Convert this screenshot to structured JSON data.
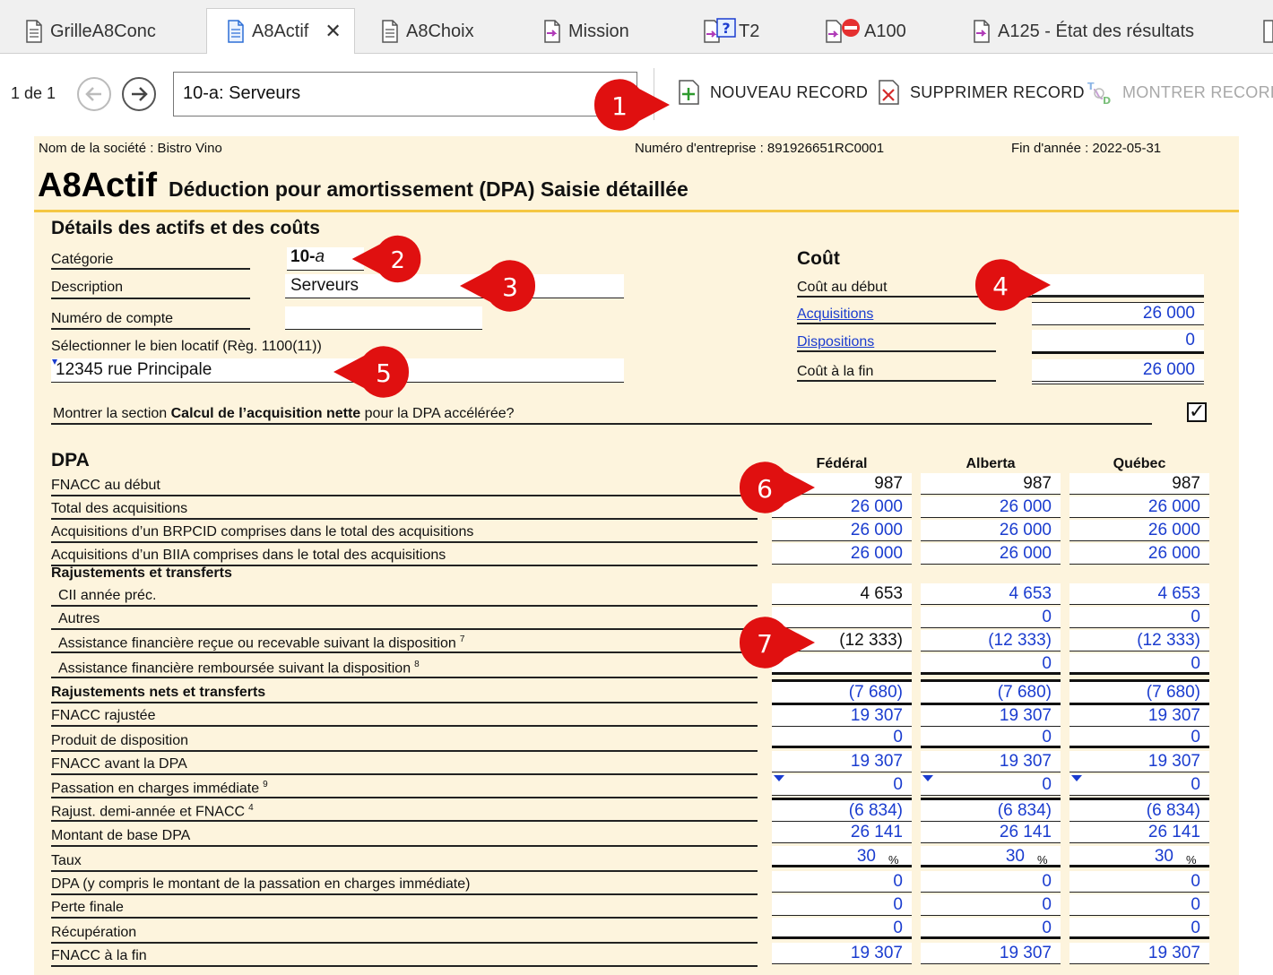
{
  "tabs": [
    {
      "label": "GrilleA8Conc",
      "icon": "document-icon"
    },
    {
      "label": "A8Actif",
      "icon": "document-icon",
      "active": true
    },
    {
      "label": "A8Choix",
      "icon": "document-icon"
    },
    {
      "label": "Mission",
      "icon": "document-arrow-icon"
    },
    {
      "label": "T2",
      "icon": "document-question-icon"
    },
    {
      "label": "A100",
      "icon": "document-error-icon"
    },
    {
      "label": "A125 - État des résultats",
      "icon": "document-arrow-icon"
    }
  ],
  "toolbar": {
    "record_count": "1 de 1",
    "record_value": "10-a: Serveurs",
    "new_record": "NOUVEAU RECORD",
    "delete_record": "SUPPRIMER RECORD",
    "show_record": "MONTRER RECORD"
  },
  "header": {
    "company": "Nom de la société : Bistro Vino",
    "business_number": "Numéro d'entreprise : 891926651RC0001",
    "year_end": "Fin d'année : 2022-05-31",
    "form_code": "A8Actif",
    "form_title": "Déduction pour amortissement (DPA) Saisie détaillée"
  },
  "details": {
    "section_title": "Détails des actifs et des coûts",
    "category_label": "Catégorie",
    "category_value_main": "10-",
    "category_value_suffix": "a",
    "description_label": "Description",
    "description_value": "Serveurs",
    "account_label": "Numéro de compte",
    "account_value": "",
    "rental_label": "Sélectionner le bien locatif (Règ. 1100(11))",
    "rental_value": "12345 rue Principale",
    "net_acq_prefix": "Montrer la section ",
    "net_acq_bold": "Calcul de l’acquisition nette",
    "net_acq_suffix": " pour la DPA accélérée?",
    "net_acq_checked": "✓"
  },
  "cost": {
    "title": "Coût",
    "opening_label": "Coût au début",
    "opening_value": "",
    "acquisitions_label": "Acquisitions",
    "acquisitions_value": "26 000",
    "dispositions_label": "Dispositions",
    "dispositions_value": "0",
    "closing_label": "Coût à la fin",
    "closing_value": "26 000"
  },
  "dpa": {
    "title": "DPA",
    "columns": [
      "Fédéral",
      "Alberta",
      "Québec"
    ],
    "rows": {
      "fnacc_debut": {
        "label": "FNACC au début",
        "values": [
          "987",
          "987",
          "987"
        ]
      },
      "total_acq": {
        "label": "Total des acquisitions",
        "values": [
          "26 000",
          "26 000",
          "26 000"
        ]
      },
      "brpcid": {
        "label": "Acquisitions d’un BRPCID comprises dans le total des acquisitions",
        "values": [
          "26 000",
          "26 000",
          "26 000"
        ]
      },
      "biia": {
        "label": "Acquisitions d’un BIIA comprises dans le total des acquisitions",
        "values": [
          "26 000",
          "26 000",
          "26 000"
        ]
      },
      "raj_title": {
        "label": "Rajustements et transferts"
      },
      "cii": {
        "label": "CII année préc.",
        "values": [
          "4 653",
          "4 653",
          "4 653"
        ]
      },
      "autres": {
        "label": "Autres",
        "values": [
          "",
          "0",
          "0"
        ]
      },
      "assist_recue": {
        "label": "Assistance financière reçue ou recevable suivant la disposition",
        "sup": "7",
        "values": [
          "(12 333)",
          "(12 333)",
          "(12 333)"
        ]
      },
      "assist_remb": {
        "label": "Assistance financière remboursée suivant la disposition",
        "sup": "8",
        "values": [
          "",
          "0",
          "0"
        ]
      },
      "raj_nets": {
        "label": "Rajustements nets et transferts",
        "values": [
          "(7 680)",
          "(7 680)",
          "(7 680)"
        ]
      },
      "fnacc_raj": {
        "label": "FNACC rajustée",
        "values": [
          "19 307",
          "19 307",
          "19 307"
        ]
      },
      "produit": {
        "label": "Produit de disposition",
        "values": [
          "0",
          "0",
          "0"
        ]
      },
      "fnacc_avant": {
        "label": "FNACC avant la DPA",
        "values": [
          "19 307",
          "19 307",
          "19 307"
        ]
      },
      "passation": {
        "label": "Passation en charges immédiate",
        "sup": "9",
        "values": [
          "0",
          "0",
          "0"
        ]
      },
      "demi_annee": {
        "label": "Rajust. demi-année et FNACC",
        "sup": "4",
        "values": [
          "(6 834)",
          "(6 834)",
          "(6 834)"
        ]
      },
      "base_dpa": {
        "label": "Montant de base DPA",
        "values": [
          "26 141",
          "26 141",
          "26 141"
        ]
      },
      "taux": {
        "label": "Taux",
        "values": [
          "30",
          "30",
          "30"
        ],
        "unit": "%"
      },
      "dpa_total": {
        "label": "DPA (y compris le montant de la passation en charges immédiate)",
        "values": [
          "0",
          "0",
          "0"
        ]
      },
      "perte": {
        "label": "Perte finale",
        "values": [
          "0",
          "0",
          "0"
        ]
      },
      "recup": {
        "label": "Récupération",
        "values": [
          "0",
          "0",
          "0"
        ]
      },
      "fnacc_fin": {
        "label": "FNACC à la fin",
        "values": [
          "19 307",
          "19 307",
          "19 307"
        ]
      }
    }
  },
  "callouts": [
    "1",
    "2",
    "3",
    "4",
    "5",
    "6",
    "7"
  ],
  "colors": {
    "accent_link": "#1a3ccf",
    "form_bg": "#fdf4dd",
    "title_rule": "#f5c743",
    "callout": "#e01010"
  }
}
